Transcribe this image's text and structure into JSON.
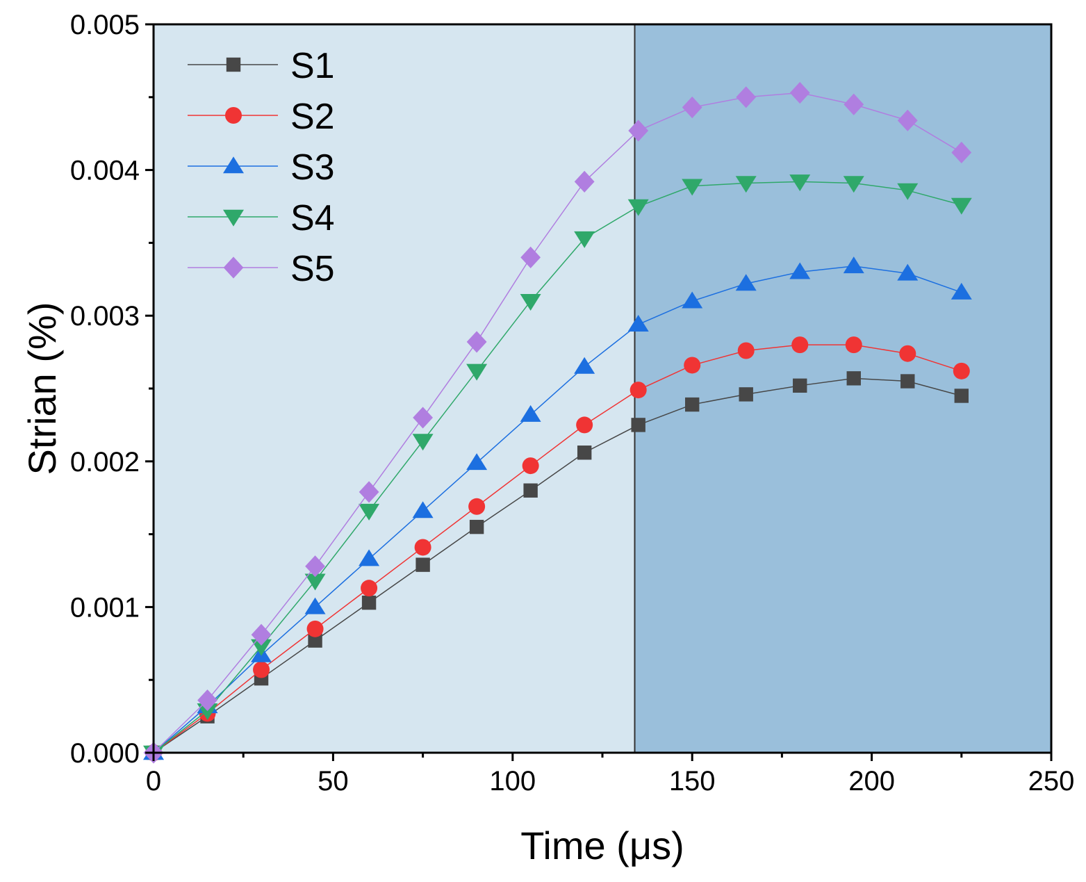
{
  "chart_data": {
    "type": "line",
    "title": "",
    "xlabel": "Time (μs)",
    "ylabel": "Strian (%)",
    "xlim": [
      0,
      250
    ],
    "ylim": [
      0,
      0.005
    ],
    "xticks": [
      0,
      50,
      100,
      150,
      200,
      250
    ],
    "xtick_labels": [
      "0",
      "50",
      "100",
      "150",
      "200",
      "250"
    ],
    "yticks": [
      0,
      0.001,
      0.002,
      0.003,
      0.004,
      0.005
    ],
    "ytick_labels": [
      "0.000",
      "0.001",
      "0.002",
      "0.003",
      "0.004",
      "0.005"
    ],
    "grid": false,
    "legend_position": "top-left",
    "regions": [
      {
        "from": 0,
        "to": 134,
        "color": "#d6e6f0"
      },
      {
        "from": 134,
        "to": 250,
        "color": "#9abfdb"
      }
    ],
    "divider_x": 134,
    "x": [
      0,
      15,
      30,
      45,
      60,
      75,
      90,
      105,
      120,
      135,
      150,
      165,
      180,
      195,
      210,
      225
    ],
    "series": [
      {
        "name": "S1",
        "marker": "square",
        "color": "#474747",
        "values": [
          0,
          0.00025,
          0.00051,
          0.00077,
          0.00103,
          0.00129,
          0.00155,
          0.0018,
          0.00206,
          0.00225,
          0.00239,
          0.00246,
          0.00252,
          0.00257,
          0.00255,
          0.00245
        ]
      },
      {
        "name": "S2",
        "marker": "circle",
        "color": "#f03434",
        "values": [
          0,
          0.00027,
          0.00057,
          0.00085,
          0.00113,
          0.00141,
          0.00169,
          0.00197,
          0.00225,
          0.00249,
          0.00266,
          0.00276,
          0.0028,
          0.0028,
          0.00274,
          0.00262
        ]
      },
      {
        "name": "S3",
        "marker": "triangle-up",
        "color": "#1c6fe0",
        "values": [
          0,
          0.00032,
          0.00067,
          0.001,
          0.00133,
          0.00166,
          0.00199,
          0.00232,
          0.00265,
          0.00294,
          0.0031,
          0.00322,
          0.0033,
          0.00334,
          0.00329,
          0.00316
        ]
      },
      {
        "name": "S4",
        "marker": "triangle-down",
        "color": "#2fa86a",
        "values": [
          0,
          0.00029,
          0.00073,
          0.00118,
          0.00166,
          0.00214,
          0.00262,
          0.0031,
          0.00353,
          0.00375,
          0.00389,
          0.00391,
          0.00392,
          0.00391,
          0.00386,
          0.00376
        ]
      },
      {
        "name": "S5",
        "marker": "diamond",
        "color": "#b07ee0",
        "values": [
          0,
          0.00036,
          0.00081,
          0.00128,
          0.00179,
          0.0023,
          0.00282,
          0.0034,
          0.00392,
          0.00427,
          0.00443,
          0.0045,
          0.00453,
          0.00445,
          0.00434,
          0.00412
        ]
      }
    ]
  }
}
